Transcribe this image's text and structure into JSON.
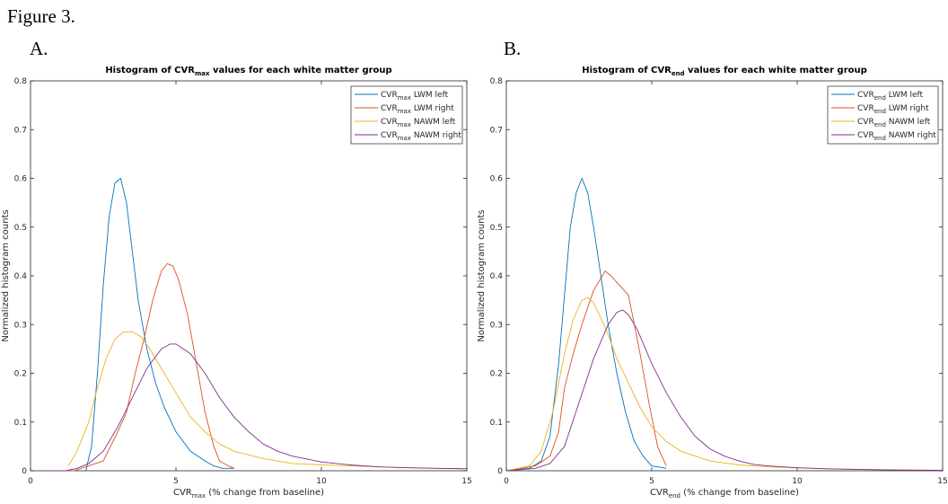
{
  "figure_label": "Figure 3.",
  "panels": [
    {
      "letter": "A."
    },
    {
      "letter": "B."
    }
  ],
  "series_colors": [
    "#0072BD",
    "#D95319",
    "#EDB120",
    "#7E2F8E"
  ],
  "chart_data": [
    {
      "type": "line",
      "title_main": "Histogram of CVR",
      "title_sub": "max",
      "title_rest": " values for each white matter group",
      "xlabel_main": "CVR",
      "xlabel_sub": "max",
      "xlabel_rest": " (% change from baseline)",
      "ylabel": "Normalized histogram counts",
      "xlim": [
        0,
        15
      ],
      "ylim": [
        0,
        0.8
      ],
      "xticks": [
        0,
        5,
        10,
        15
      ],
      "yticks": [
        0,
        0.1,
        0.2,
        0.3,
        0.4,
        0.5,
        0.6,
        0.7,
        0.8
      ],
      "grid": false,
      "legend_position": "top-right",
      "series": [
        {
          "name_main": "CVR",
          "name_sub": "max",
          "name_rest": " LWM left",
          "x": [
            1.9,
            2.1,
            2.3,
            2.5,
            2.7,
            2.9,
            3.1,
            3.3,
            3.5,
            3.7,
            4.0,
            4.3,
            4.6,
            5.0,
            5.5,
            6.0,
            6.3,
            6.6,
            7.0
          ],
          "y": [
            0.0,
            0.05,
            0.2,
            0.38,
            0.52,
            0.59,
            0.6,
            0.55,
            0.45,
            0.35,
            0.25,
            0.18,
            0.13,
            0.08,
            0.04,
            0.02,
            0.01,
            0.005,
            0.005
          ]
        },
        {
          "name_main": "CVR",
          "name_sub": "max",
          "name_rest": " LWM right",
          "x": [
            1.0,
            1.5,
            2.0,
            2.5,
            3.0,
            3.3,
            3.6,
            3.9,
            4.2,
            4.5,
            4.7,
            4.9,
            5.1,
            5.4,
            5.7,
            6.0,
            6.3,
            6.5,
            6.8,
            7.0
          ],
          "y": [
            0.0,
            0.0,
            0.01,
            0.02,
            0.08,
            0.12,
            0.2,
            0.27,
            0.35,
            0.41,
            0.425,
            0.42,
            0.39,
            0.32,
            0.22,
            0.12,
            0.05,
            0.02,
            0.01,
            0.005
          ]
        },
        {
          "name_main": "CVR",
          "name_sub": "max",
          "name_rest": " NAWM left",
          "x": [
            1.3,
            1.6,
            2.0,
            2.3,
            2.6,
            2.9,
            3.2,
            3.5,
            3.8,
            4.1,
            4.5,
            5.0,
            5.5,
            6.0,
            6.5,
            7.0,
            8.0,
            9.0,
            10.0,
            11.0,
            12.0,
            13.0,
            14.0,
            15.0
          ],
          "y": [
            0.01,
            0.04,
            0.1,
            0.17,
            0.23,
            0.27,
            0.285,
            0.285,
            0.275,
            0.25,
            0.21,
            0.16,
            0.11,
            0.08,
            0.055,
            0.04,
            0.025,
            0.015,
            0.012,
            0.01,
            0.008,
            0.006,
            0.005,
            0.004
          ]
        },
        {
          "name_main": "CVR",
          "name_sub": "max",
          "name_rest": " NAWM right",
          "x": [
            0.8,
            1.2,
            1.6,
            2.0,
            2.5,
            3.0,
            3.5,
            4.0,
            4.5,
            4.8,
            5.0,
            5.5,
            6.0,
            6.5,
            7.0,
            7.5,
            8.0,
            8.5,
            9.0,
            10.0,
            11.0,
            12.0,
            13.0,
            14.0,
            15.0
          ],
          "y": [
            0.0,
            0.0,
            0.005,
            0.015,
            0.04,
            0.09,
            0.15,
            0.21,
            0.25,
            0.26,
            0.26,
            0.24,
            0.2,
            0.15,
            0.11,
            0.08,
            0.055,
            0.04,
            0.03,
            0.018,
            0.012,
            0.008,
            0.006,
            0.005,
            0.004
          ]
        }
      ]
    },
    {
      "type": "line",
      "title_main": "Histogram of CVR",
      "title_sub": "end",
      "title_rest": " values for each white matter group",
      "xlabel_main": "CVR",
      "xlabel_sub": "end",
      "xlabel_rest": " (% change from baseline)",
      "ylabel": "Normalized histogram counts",
      "xlim": [
        0,
        15
      ],
      "ylim": [
        0,
        0.8
      ],
      "xticks": [
        0,
        5,
        10,
        15
      ],
      "yticks": [
        0,
        0.1,
        0.2,
        0.3,
        0.4,
        0.5,
        0.6,
        0.7,
        0.8
      ],
      "grid": false,
      "legend_position": "top-right",
      "series": [
        {
          "name_main": "CVR",
          "name_sub": "end",
          "name_rest": " LWM left",
          "x": [
            0.0,
            0.8,
            1.2,
            1.5,
            1.8,
            2.0,
            2.2,
            2.4,
            2.6,
            2.8,
            3.0,
            3.2,
            3.5,
            3.8,
            4.1,
            4.4,
            4.7,
            5.0,
            5.5
          ],
          "y": [
            0.0,
            0.005,
            0.02,
            0.07,
            0.22,
            0.36,
            0.5,
            0.57,
            0.6,
            0.57,
            0.5,
            0.42,
            0.3,
            0.2,
            0.12,
            0.06,
            0.03,
            0.01,
            0.005
          ]
        },
        {
          "name_main": "CVR",
          "name_sub": "end",
          "name_rest": " LWM right",
          "x": [
            0.0,
            1.0,
            1.5,
            1.8,
            2.0,
            2.3,
            2.6,
            3.0,
            3.4,
            3.6,
            3.9,
            4.2,
            4.4,
            4.6,
            4.9,
            5.2,
            5.5
          ],
          "y": [
            0.0,
            0.01,
            0.03,
            0.08,
            0.17,
            0.24,
            0.3,
            0.37,
            0.41,
            0.4,
            0.38,
            0.36,
            0.3,
            0.24,
            0.14,
            0.05,
            0.01
          ]
        },
        {
          "name_main": "CVR",
          "name_sub": "end",
          "name_rest": " NAWM left",
          "x": [
            0.0,
            0.8,
            1.2,
            1.6,
            2.0,
            2.3,
            2.6,
            2.8,
            3.0,
            3.2,
            3.5,
            3.8,
            4.2,
            4.6,
            5.0,
            5.5,
            6.0,
            6.5,
            7.0,
            8.0,
            9.0,
            10.0,
            11.0,
            12.0,
            13.0,
            14.0,
            15.0
          ],
          "y": [
            0.0,
            0.01,
            0.04,
            0.12,
            0.24,
            0.31,
            0.35,
            0.355,
            0.345,
            0.32,
            0.28,
            0.23,
            0.18,
            0.13,
            0.09,
            0.06,
            0.04,
            0.03,
            0.02,
            0.012,
            0.008,
            0.006,
            0.004,
            0.003,
            0.002,
            0.002,
            0.001
          ]
        },
        {
          "name_main": "CVR",
          "name_sub": "end",
          "name_rest": " NAWM right",
          "x": [
            0.0,
            1.0,
            1.5,
            2.0,
            2.5,
            3.0,
            3.5,
            3.8,
            4.0,
            4.2,
            4.5,
            5.0,
            5.5,
            6.0,
            6.5,
            7.0,
            7.5,
            8.0,
            8.5,
            9.0,
            10.0,
            11.0,
            12.0,
            13.0,
            14.0,
            15.0
          ],
          "y": [
            0.0,
            0.005,
            0.015,
            0.05,
            0.14,
            0.23,
            0.3,
            0.325,
            0.33,
            0.32,
            0.29,
            0.22,
            0.16,
            0.11,
            0.07,
            0.045,
            0.03,
            0.02,
            0.013,
            0.01,
            0.006,
            0.004,
            0.003,
            0.002,
            0.001,
            0.001
          ]
        }
      ]
    }
  ]
}
